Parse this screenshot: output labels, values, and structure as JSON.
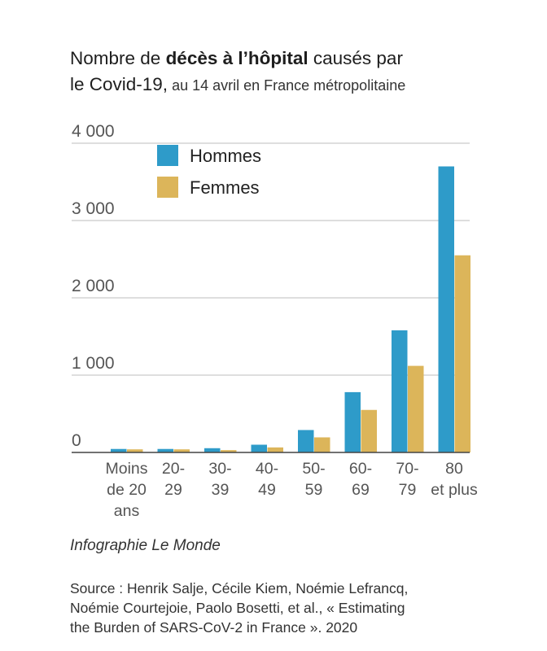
{
  "title": {
    "part1": "Nombre de ",
    "bold": "décès à l’hôpital",
    "part2": " causés par",
    "line2_main": "le Covid-19,",
    "line2_rest": " au 14 avril en France métropolitaine"
  },
  "credit": "Infographie Le Monde",
  "source": {
    "line1": "Source : Henrik Salje, Cécile Kiem, Noémie Lefrancq,",
    "line2": "Noémie Courtejoie, Paolo Bosetti, et al., « Estimating",
    "line3": "the Burden of SARS-CoV-2 in France ». 2020"
  },
  "chart_data": {
    "type": "bar",
    "categories": [
      [
        "Moins",
        "de 20",
        "ans"
      ],
      [
        "20-",
        "29"
      ],
      [
        "30-",
        "39"
      ],
      [
        "40-",
        "49"
      ],
      [
        "50-",
        "59"
      ],
      [
        "60-",
        "69"
      ],
      [
        "70-",
        "79"
      ],
      [
        "80",
        "et plus"
      ]
    ],
    "series": [
      {
        "name": "Hommes",
        "color": "#2e9bc9",
        "values": [
          45,
          45,
          55,
          100,
          290,
          780,
          1580,
          3700
        ]
      },
      {
        "name": "Femmes",
        "color": "#dcb55a",
        "values": [
          40,
          40,
          30,
          65,
          195,
          550,
          1120,
          2550
        ]
      }
    ],
    "ylim": [
      0,
      4000
    ],
    "yticks": [
      0,
      1000,
      2000,
      3000,
      4000
    ],
    "ytick_labels": [
      "0",
      "1 000",
      "2 000",
      "3 000",
      "4 000"
    ],
    "grid": true,
    "legend_placement": "top-left"
  }
}
